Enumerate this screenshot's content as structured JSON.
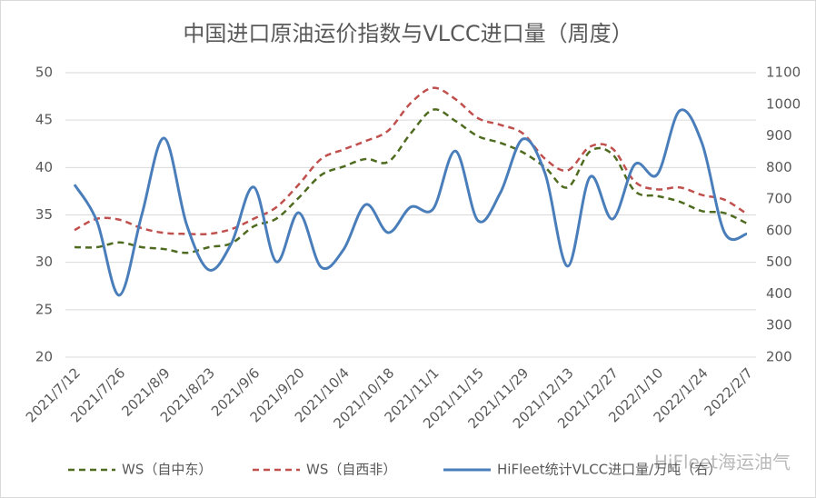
{
  "chart_data": {
    "type": "line",
    "title": "中国进口原油运价指数与VLCC进口量（周度）",
    "watermark": "HiFleet海运油气",
    "categories": [
      "2021/7/12",
      null,
      "2021/7/26",
      null,
      "2021/8/9",
      null,
      "2021/8/23",
      null,
      "2021/9/6",
      null,
      "2021/9/20",
      null,
      "2021/10/4",
      null,
      "2021/10/18",
      null,
      "2021/11/1",
      null,
      "2021/11/15",
      null,
      "2021/11/29",
      null,
      "2021/12/13",
      null,
      "2021/12/27",
      null,
      "2022/1/10",
      null,
      "2022/1/24",
      null,
      "2022/2/7"
    ],
    "series": [
      {
        "name": "WS（自中东）",
        "color": "#4e6b1f",
        "dash": true,
        "axis": "y",
        "values": [
          31.6,
          31.6,
          32.1,
          31.6,
          31.4,
          31.0,
          31.6,
          32.0,
          33.8,
          34.6,
          36.8,
          39.2,
          40.1,
          40.9,
          40.6,
          43.6,
          46.1,
          44.9,
          43.3,
          42.6,
          41.6,
          40.0,
          37.9,
          41.7,
          41.4,
          37.5,
          37.0,
          36.4,
          35.4,
          35.2,
          34.1
        ]
      },
      {
        "name": "WS（自西非）",
        "color": "#c0504d",
        "dash": true,
        "axis": "y",
        "values": [
          33.4,
          34.6,
          34.5,
          33.6,
          33.1,
          33.0,
          33.0,
          33.5,
          34.6,
          35.8,
          38.2,
          40.9,
          41.9,
          42.8,
          43.9,
          46.8,
          48.4,
          47.2,
          45.2,
          44.5,
          43.6,
          40.9,
          39.7,
          42.2,
          42.0,
          38.5,
          37.7,
          37.9,
          37.1,
          36.6,
          35.1
        ]
      },
      {
        "name": "HiFleet统计VLCC进口量/万吨（右）",
        "color": "#4a7ebb",
        "dash": false,
        "axis": "y2",
        "values": [
          746,
          630,
          396,
          650,
          893,
          620,
          476,
          560,
          738,
          502,
          657,
          485,
          540,
          683,
          594,
          675,
          669,
          852,
          632,
          720,
          890,
          780,
          488,
          770,
          637,
          810,
          778,
          980,
          876,
          594,
          590
        ]
      }
    ],
    "ylim": [
      20,
      50
    ],
    "yticks": [
      20,
      25,
      30,
      35,
      40,
      45,
      50
    ],
    "y2lim": [
      200,
      1100
    ],
    "y2ticks": [
      200,
      300,
      400,
      500,
      600,
      700,
      800,
      900,
      1000,
      1100
    ],
    "grid": true,
    "legend": "bottom"
  }
}
